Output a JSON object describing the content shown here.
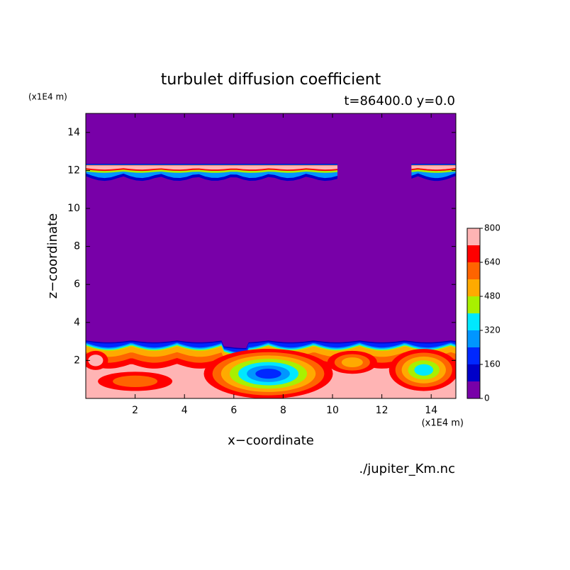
{
  "chart_data": {
    "type": "contour",
    "title": "turbulet diffusion coefficient",
    "subtitle": "t=86400.0 y=0.0",
    "xlabel": "x−coordinate",
    "ylabel": "z−coordinate",
    "x_unit": "(x1E4 m)",
    "y_unit": "(x1E4 m)",
    "source": "./jupiter_Km.nc",
    "xlim": [
      0,
      15
    ],
    "xticks": [
      2,
      4,
      6,
      8,
      10,
      12,
      14
    ],
    "ylim": [
      0,
      15
    ],
    "yticks": [
      2,
      4,
      6,
      8,
      10,
      12,
      14
    ],
    "levels": [
      0,
      80,
      160,
      240,
      320,
      400,
      480,
      560,
      640,
      720,
      800
    ],
    "colors": [
      "#7800a8",
      "#0000c8",
      "#0028ff",
      "#0096ff",
      "#00e8ff",
      "#a8f000",
      "#ffaa00",
      "#ff6400",
      "#ff0000",
      "#ffb4b4"
    ],
    "colorbar_ticks": [
      0,
      160,
      320,
      480,
      640,
      800
    ]
  }
}
